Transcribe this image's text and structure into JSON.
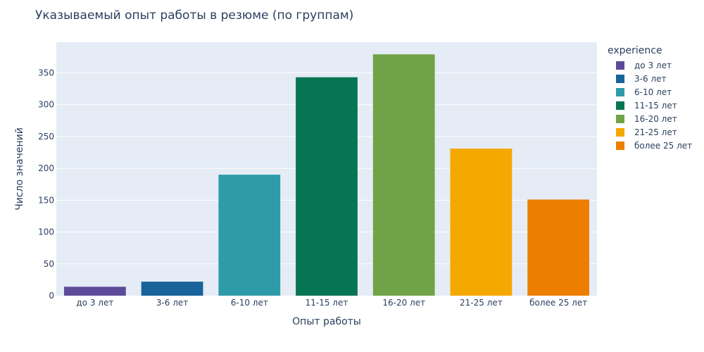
{
  "title": "Указываемый опыт работы в резюме (по группам)",
  "legend_title": "experience",
  "colors": {
    "plot_bg": "#e5ecf6",
    "grid": "#ffffff",
    "text": "#2a3f5f"
  },
  "chart_data": {
    "type": "bar",
    "title": "Указываемый опыт работы в резюме (по группам)",
    "xlabel": "Опыт работы",
    "ylabel": "Число значений",
    "categories": [
      "до 3 лет",
      "3-6 лет",
      "6-10 лет",
      "11-15 лет",
      "16-20 лет",
      "21-25 лет",
      "более 25 лет"
    ],
    "values": [
      14,
      22,
      190,
      343,
      379,
      231,
      151
    ],
    "bar_colors": [
      "#5d4b9a",
      "#17639a",
      "#2e9ba8",
      "#087552",
      "#70a347",
      "#f5a800",
      "#ec7f00"
    ],
    "ylim": [
      0,
      398
    ],
    "yticks": [
      0,
      50,
      100,
      150,
      200,
      250,
      300,
      350
    ],
    "grid": true,
    "legend_placement": "right"
  }
}
